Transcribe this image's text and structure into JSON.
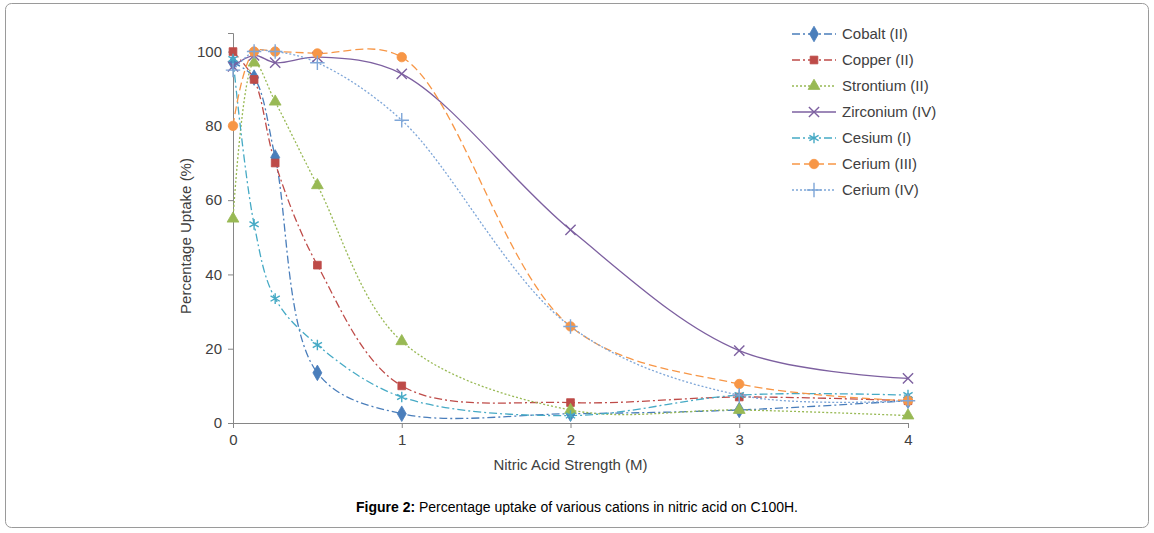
{
  "chart_data": {
    "type": "line",
    "title": "Figure 2: Percentage uptake of various cations in nitric acid on C100H.",
    "x_label": "Nitric Acid Strength (M)",
    "y_label": "Percentage Uptake (%)",
    "x": [
      0,
      0.125,
      0.25,
      0.5,
      1,
      2,
      3,
      4
    ],
    "xlim": [
      0,
      4
    ],
    "xticks": [
      0,
      1,
      2,
      3,
      4
    ],
    "ylim": [
      0,
      105
    ],
    "yticks": [
      0,
      20,
      40,
      60,
      80,
      100
    ],
    "grid": false,
    "legend": "top-right",
    "series": [
      {
        "name": "Cobalt (II)",
        "color": "#4a7ebb",
        "marker": "diamond",
        "line_style": "dash-dot",
        "values": [
          97,
          93,
          71.5,
          13.5,
          2.5,
          2.5,
          3.5,
          6
        ]
      },
      {
        "name": "Copper (II)",
        "color": "#be4b48",
        "marker": "square",
        "line_style": "dash-dot",
        "values": [
          100,
          92.5,
          70,
          42.5,
          10,
          5.5,
          7,
          6
        ]
      },
      {
        "name": "Strontium (II)",
        "color": "#98b954",
        "marker": "triangle",
        "line_style": "dotted",
        "values": [
          55,
          97,
          86.5,
          64,
          22,
          3.5,
          3.5,
          2
        ]
      },
      {
        "name": "Zirconium (IV)",
        "color": "#7d60a0",
        "marker": "x",
        "line_style": "solid",
        "values": [
          96,
          99,
          97,
          98.5,
          94,
          52,
          19.5,
          12
        ]
      },
      {
        "name": "Cesium (I)",
        "color": "#46aac5",
        "marker": "asterisk",
        "line_style": "dash-dot",
        "values": [
          98,
          53.5,
          33.5,
          21,
          7,
          2,
          7.5,
          7.5
        ]
      },
      {
        "name": "Cerium (III)",
        "color": "#f79646",
        "marker": "circle",
        "line_style": "dashed",
        "values": [
          80,
          100,
          100,
          99.5,
          98.5,
          26,
          10.5,
          6
        ]
      },
      {
        "name": "Cerium (IV)",
        "color": "#7ea6d8",
        "marker": "plus",
        "line_style": "dotted",
        "values": [
          95,
          100,
          100,
          97,
          81.5,
          26,
          7.5,
          6
        ]
      }
    ]
  }
}
